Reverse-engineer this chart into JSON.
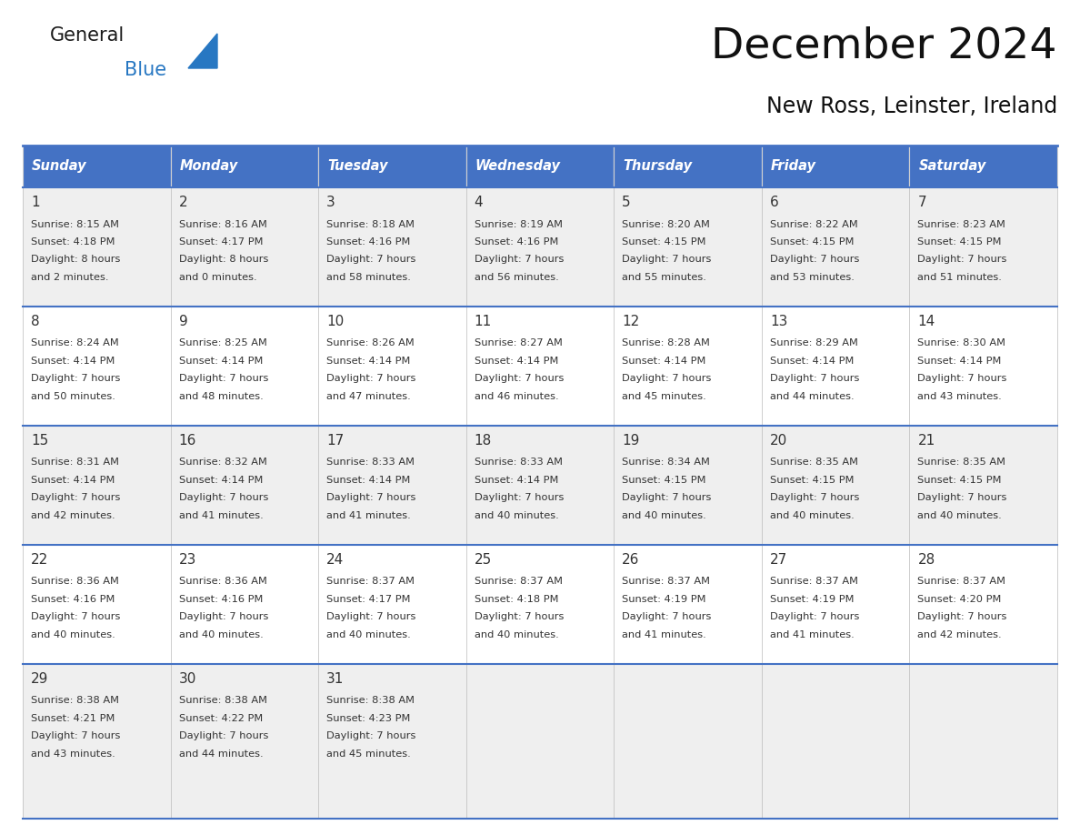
{
  "title": "December 2024",
  "subtitle": "New Ross, Leinster, Ireland",
  "days_of_week": [
    "Sunday",
    "Monday",
    "Tuesday",
    "Wednesday",
    "Thursday",
    "Friday",
    "Saturday"
  ],
  "header_bg": "#4472C4",
  "header_text_color": "#FFFFFF",
  "row_bg_odd": "#EFEFEF",
  "row_bg_even": "#FFFFFF",
  "separator_color": "#4472C4",
  "text_color": "#333333",
  "calendar_data": [
    [
      {
        "day": 1,
        "sunrise": "8:15 AM",
        "sunset": "4:18 PM",
        "daylight": "8 hours",
        "daylight2": "and 2 minutes."
      },
      {
        "day": 2,
        "sunrise": "8:16 AM",
        "sunset": "4:17 PM",
        "daylight": "8 hours",
        "daylight2": "and 0 minutes."
      },
      {
        "day": 3,
        "sunrise": "8:18 AM",
        "sunset": "4:16 PM",
        "daylight": "7 hours",
        "daylight2": "and 58 minutes."
      },
      {
        "day": 4,
        "sunrise": "8:19 AM",
        "sunset": "4:16 PM",
        "daylight": "7 hours",
        "daylight2": "and 56 minutes."
      },
      {
        "day": 5,
        "sunrise": "8:20 AM",
        "sunset": "4:15 PM",
        "daylight": "7 hours",
        "daylight2": "and 55 minutes."
      },
      {
        "day": 6,
        "sunrise": "8:22 AM",
        "sunset": "4:15 PM",
        "daylight": "7 hours",
        "daylight2": "and 53 minutes."
      },
      {
        "day": 7,
        "sunrise": "8:23 AM",
        "sunset": "4:15 PM",
        "daylight": "7 hours",
        "daylight2": "and 51 minutes."
      }
    ],
    [
      {
        "day": 8,
        "sunrise": "8:24 AM",
        "sunset": "4:14 PM",
        "daylight": "7 hours",
        "daylight2": "and 50 minutes."
      },
      {
        "day": 9,
        "sunrise": "8:25 AM",
        "sunset": "4:14 PM",
        "daylight": "7 hours",
        "daylight2": "and 48 minutes."
      },
      {
        "day": 10,
        "sunrise": "8:26 AM",
        "sunset": "4:14 PM",
        "daylight": "7 hours",
        "daylight2": "and 47 minutes."
      },
      {
        "day": 11,
        "sunrise": "8:27 AM",
        "sunset": "4:14 PM",
        "daylight": "7 hours",
        "daylight2": "and 46 minutes."
      },
      {
        "day": 12,
        "sunrise": "8:28 AM",
        "sunset": "4:14 PM",
        "daylight": "7 hours",
        "daylight2": "and 45 minutes."
      },
      {
        "day": 13,
        "sunrise": "8:29 AM",
        "sunset": "4:14 PM",
        "daylight": "7 hours",
        "daylight2": "and 44 minutes."
      },
      {
        "day": 14,
        "sunrise": "8:30 AM",
        "sunset": "4:14 PM",
        "daylight": "7 hours",
        "daylight2": "and 43 minutes."
      }
    ],
    [
      {
        "day": 15,
        "sunrise": "8:31 AM",
        "sunset": "4:14 PM",
        "daylight": "7 hours",
        "daylight2": "and 42 minutes."
      },
      {
        "day": 16,
        "sunrise": "8:32 AM",
        "sunset": "4:14 PM",
        "daylight": "7 hours",
        "daylight2": "and 41 minutes."
      },
      {
        "day": 17,
        "sunrise": "8:33 AM",
        "sunset": "4:14 PM",
        "daylight": "7 hours",
        "daylight2": "and 41 minutes."
      },
      {
        "day": 18,
        "sunrise": "8:33 AM",
        "sunset": "4:14 PM",
        "daylight": "7 hours",
        "daylight2": "and 40 minutes."
      },
      {
        "day": 19,
        "sunrise": "8:34 AM",
        "sunset": "4:15 PM",
        "daylight": "7 hours",
        "daylight2": "and 40 minutes."
      },
      {
        "day": 20,
        "sunrise": "8:35 AM",
        "sunset": "4:15 PM",
        "daylight": "7 hours",
        "daylight2": "and 40 minutes."
      },
      {
        "day": 21,
        "sunrise": "8:35 AM",
        "sunset": "4:15 PM",
        "daylight": "7 hours",
        "daylight2": "and 40 minutes."
      }
    ],
    [
      {
        "day": 22,
        "sunrise": "8:36 AM",
        "sunset": "4:16 PM",
        "daylight": "7 hours",
        "daylight2": "and 40 minutes."
      },
      {
        "day": 23,
        "sunrise": "8:36 AM",
        "sunset": "4:16 PM",
        "daylight": "7 hours",
        "daylight2": "and 40 minutes."
      },
      {
        "day": 24,
        "sunrise": "8:37 AM",
        "sunset": "4:17 PM",
        "daylight": "7 hours",
        "daylight2": "and 40 minutes."
      },
      {
        "day": 25,
        "sunrise": "8:37 AM",
        "sunset": "4:18 PM",
        "daylight": "7 hours",
        "daylight2": "and 40 minutes."
      },
      {
        "day": 26,
        "sunrise": "8:37 AM",
        "sunset": "4:19 PM",
        "daylight": "7 hours",
        "daylight2": "and 41 minutes."
      },
      {
        "day": 27,
        "sunrise": "8:37 AM",
        "sunset": "4:19 PM",
        "daylight": "7 hours",
        "daylight2": "and 41 minutes."
      },
      {
        "day": 28,
        "sunrise": "8:37 AM",
        "sunset": "4:20 PM",
        "daylight": "7 hours",
        "daylight2": "and 42 minutes."
      }
    ],
    [
      {
        "day": 29,
        "sunrise": "8:38 AM",
        "sunset": "4:21 PM",
        "daylight": "7 hours",
        "daylight2": "and 43 minutes."
      },
      {
        "day": 30,
        "sunrise": "8:38 AM",
        "sunset": "4:22 PM",
        "daylight": "7 hours",
        "daylight2": "and 44 minutes."
      },
      {
        "day": 31,
        "sunrise": "8:38 AM",
        "sunset": "4:23 PM",
        "daylight": "7 hours",
        "daylight2": "and 45 minutes."
      },
      null,
      null,
      null,
      null
    ]
  ],
  "logo_general_color": "#1a1a1a",
  "logo_blue_color": "#2777C2",
  "logo_triangle_color": "#2777C2"
}
